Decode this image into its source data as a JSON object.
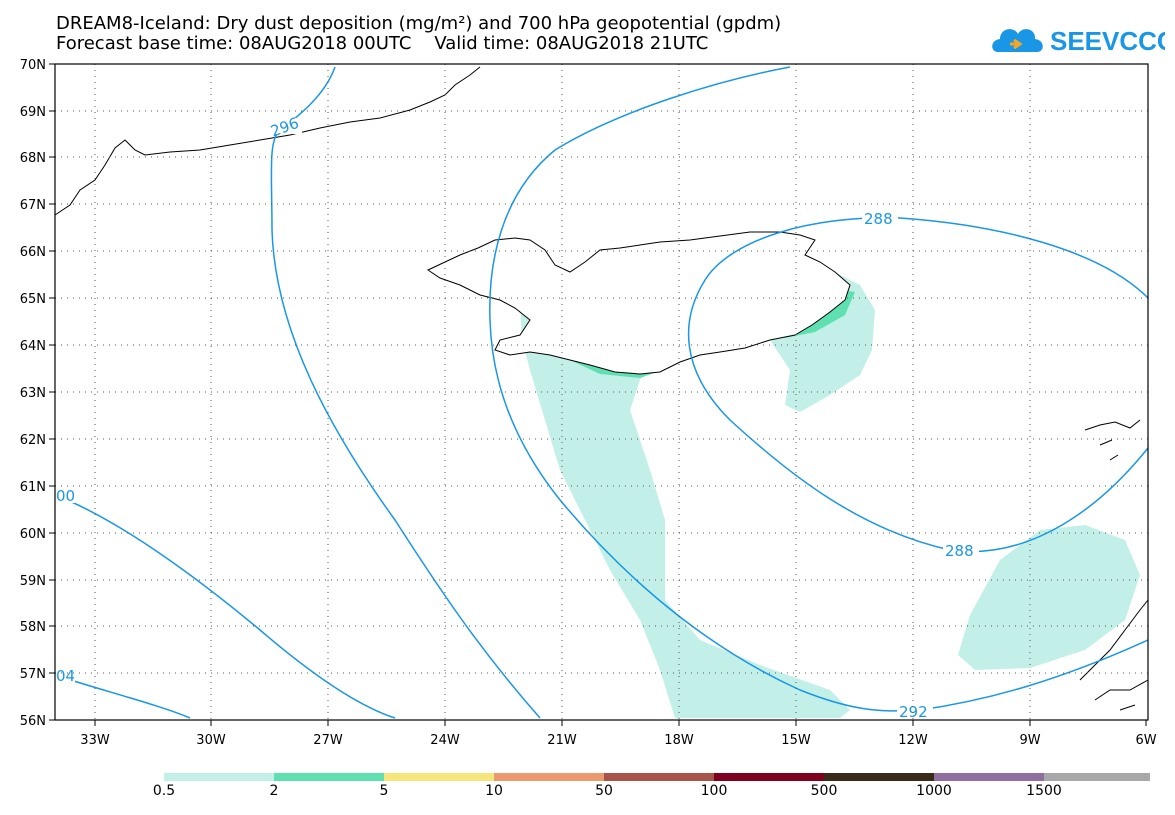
{
  "header": {
    "title_line1": "DREAM8-Iceland: Dry dust deposition (mg/m²) and 700 hPa geopotential (gpdm)",
    "title_line2": "Forecast base time: 08AUG2018 00UTC    Valid time: 08AUG2018 21UTC",
    "logo_text": "SEEVCCC"
  },
  "map": {
    "lon_labels": [
      "33W",
      "30W",
      "27W",
      "24W",
      "21W",
      "18W",
      "15W",
      "12W",
      "9W",
      "6W"
    ],
    "lat_labels": [
      "70N",
      "69N",
      "68N",
      "67N",
      "66N",
      "65N",
      "64N",
      "63N",
      "62N",
      "61N",
      "60N",
      "59N",
      "58N",
      "57N",
      "56N"
    ],
    "contour_labels": [
      "296",
      "288",
      "288",
      "292",
      "00",
      "04"
    ],
    "contour_color": "#1a96e6"
  },
  "colorbar": {
    "labels": [
      "0.5",
      "2",
      "5",
      "10",
      "50",
      "100",
      "500",
      "1000",
      "1500"
    ],
    "colors": [
      "#c2f0e8",
      "#5ee0b0",
      "#f5e57a",
      "#eb9a6e",
      "#a9544a",
      "#800020",
      "#3a2a1a",
      "#8f6fa0",
      "#a8a8a8"
    ]
  }
}
